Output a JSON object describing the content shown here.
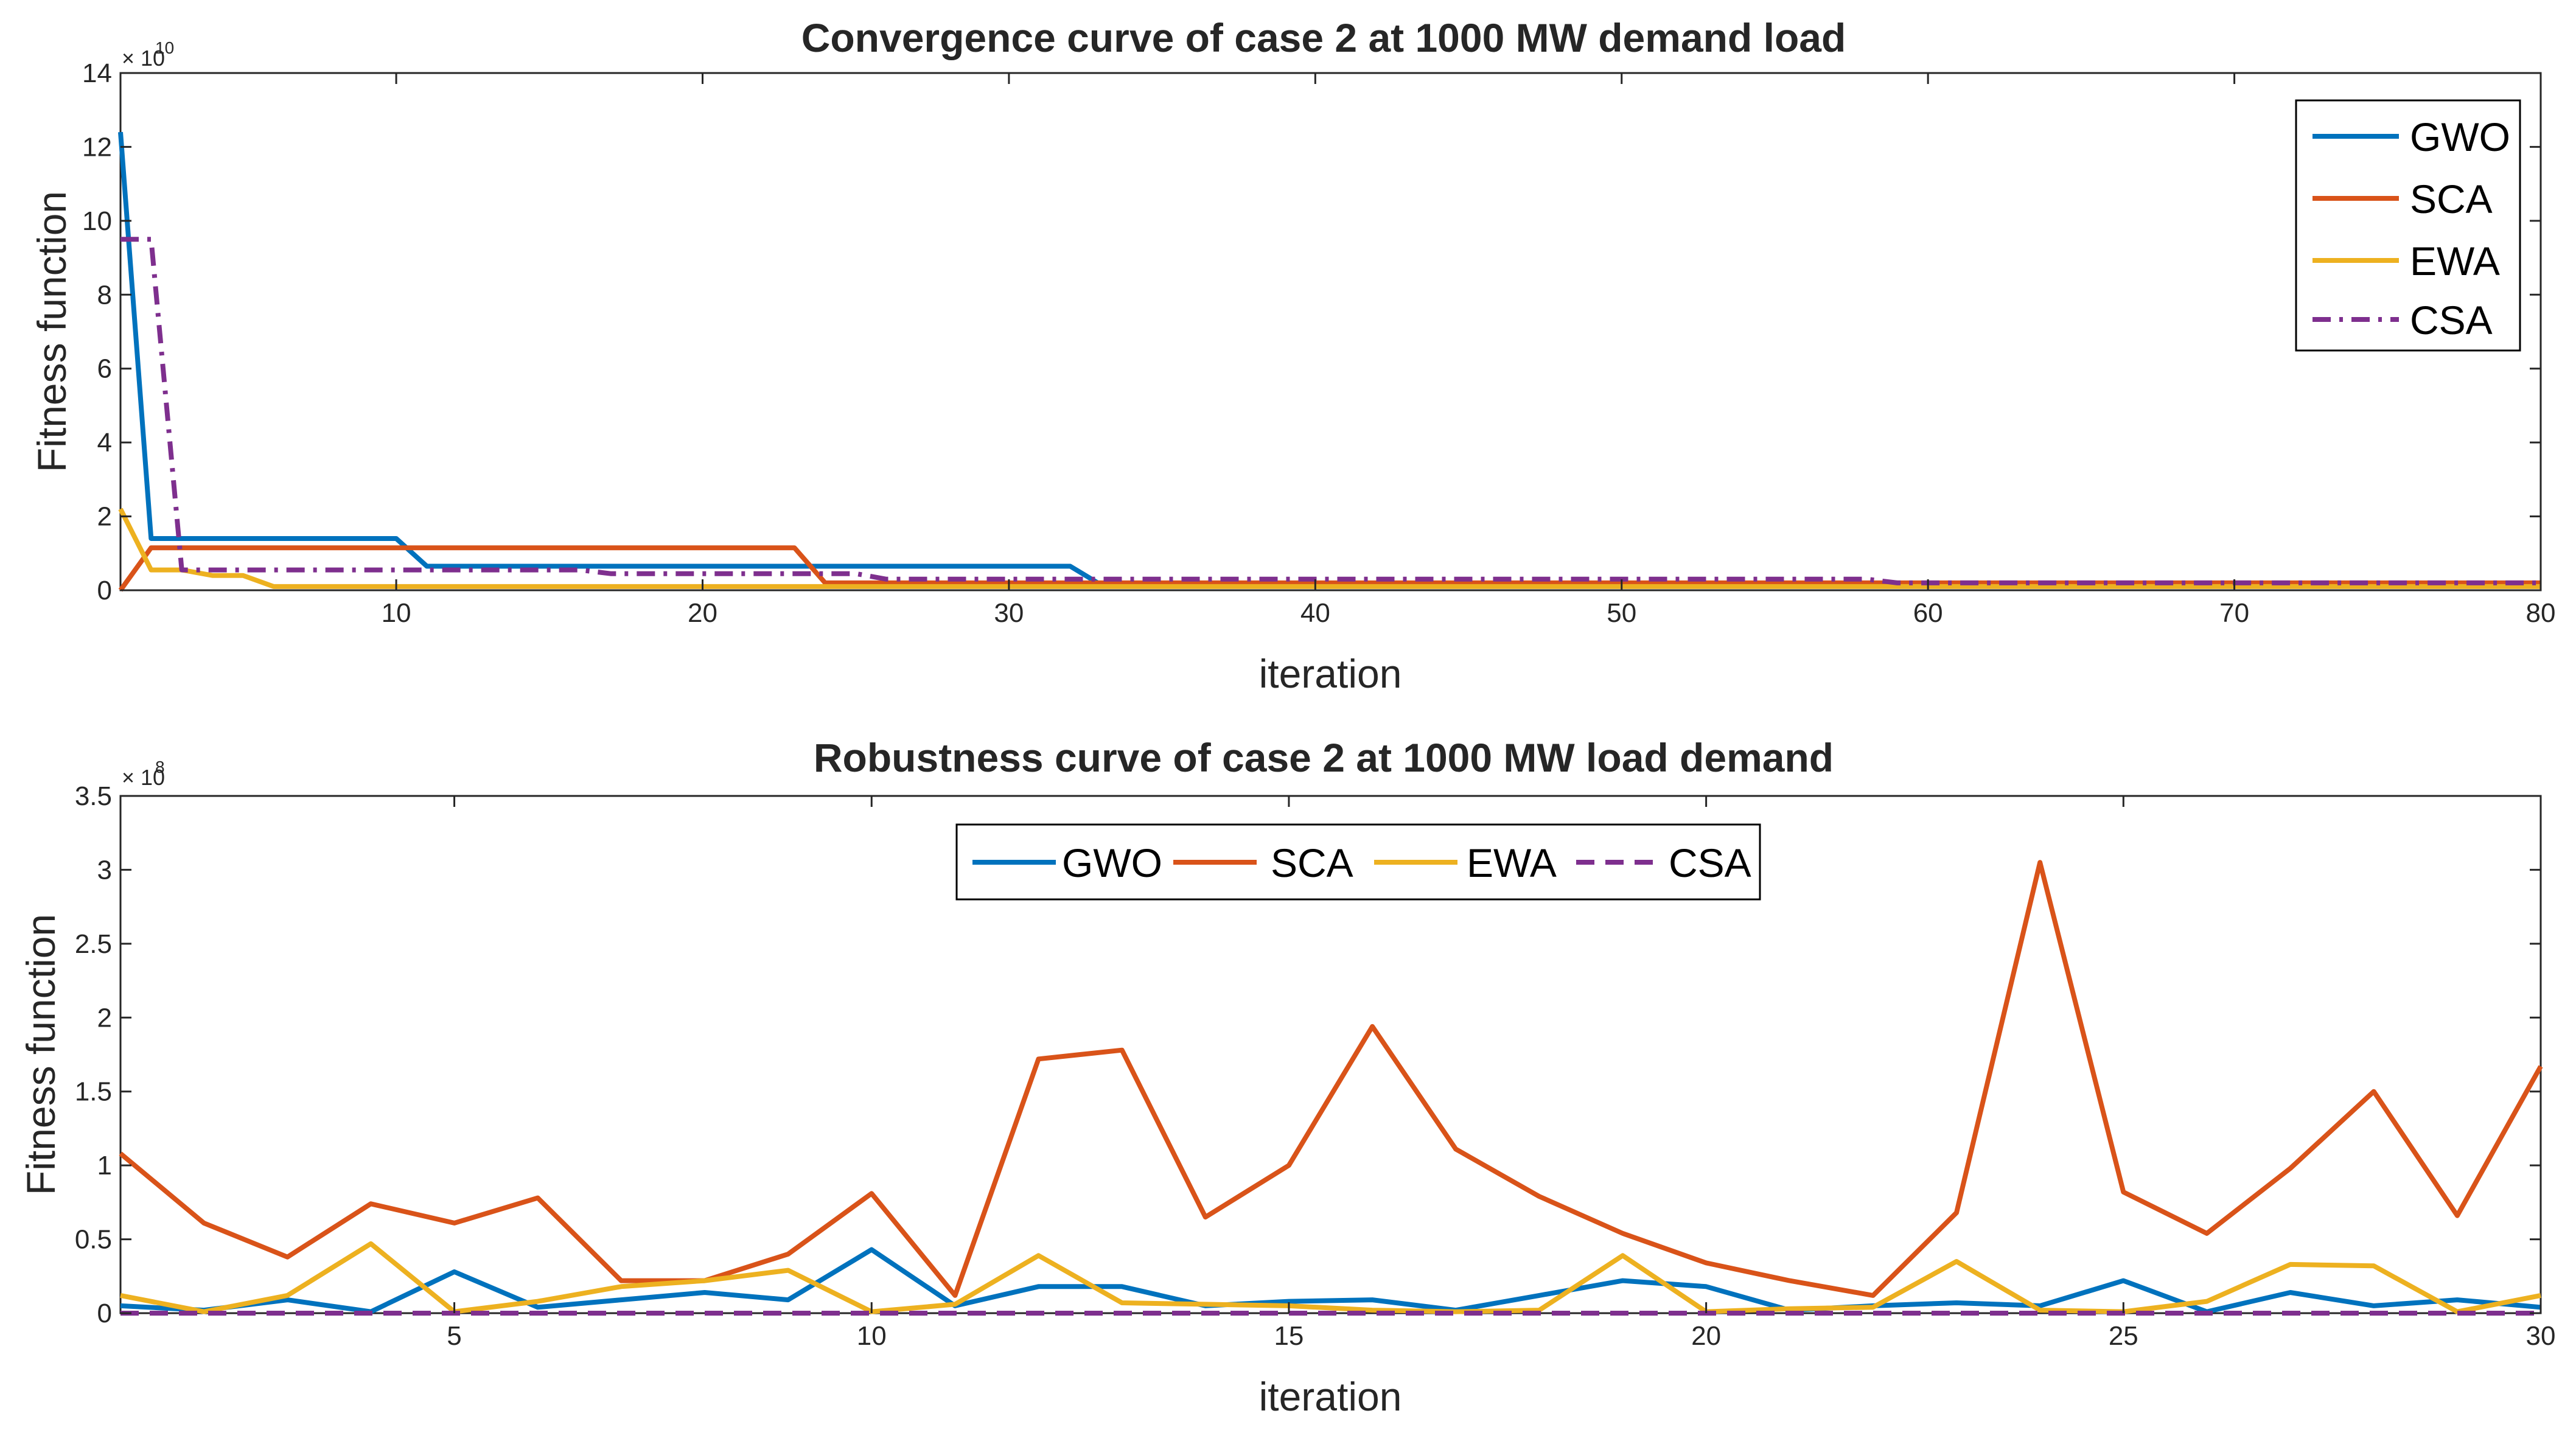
{
  "colors": {
    "GWO": "#0072BD",
    "SCA": "#D95319",
    "EWA": "#EDB120",
    "CSA": "#7E2F8E",
    "axis": "#262626"
  },
  "chart_data": [
    {
      "type": "line",
      "title": "Convergence curve of case 2 at 1000 MW demand load",
      "xlabel": "iteration",
      "ylabel": "Fitness function",
      "xlim": [
        1,
        80
      ],
      "ylim": [
        0,
        14
      ],
      "xticks": [
        10,
        20,
        30,
        40,
        50,
        60,
        70,
        80
      ],
      "xtick_labels": [
        "10",
        "20",
        "30",
        "40",
        "50",
        "60",
        "70",
        "80"
      ],
      "yticks": [
        0,
        2,
        4,
        6,
        8,
        10,
        12,
        14
      ],
      "ytick_labels": [
        "0",
        "2",
        "4",
        "6",
        "8",
        "10",
        "12",
        "14"
      ],
      "y_exponent_base": "× 10",
      "y_exponent_power": "10",
      "legend_position": "top-right",
      "legend_orientation": "vertical",
      "series": [
        {
          "name": "GWO",
          "color": "#0072BD",
          "dash": "solid",
          "points": [
            [
              1,
              12.4
            ],
            [
              2,
              1.4
            ],
            [
              10,
              1.4
            ],
            [
              11,
              0.65
            ],
            [
              32,
              0.65
            ],
            [
              33,
              0.15
            ],
            [
              80,
              0.15
            ]
          ]
        },
        {
          "name": "SCA",
          "color": "#D95319",
          "dash": "solid",
          "points": [
            [
              1,
              0.0
            ],
            [
              2,
              1.15
            ],
            [
              23,
              1.15
            ],
            [
              24,
              0.2
            ],
            [
              80,
              0.2
            ]
          ]
        },
        {
          "name": "EWA",
          "color": "#EDB120",
          "dash": "solid",
          "points": [
            [
              1,
              2.2
            ],
            [
              2,
              0.55
            ],
            [
              3,
              0.55
            ],
            [
              4,
              0.4
            ],
            [
              5,
              0.4
            ],
            [
              6,
              0.1
            ],
            [
              80,
              0.1
            ]
          ]
        },
        {
          "name": "CSA",
          "color": "#7E2F8E",
          "dash": "dashdot",
          "points": [
            [
              1,
              9.5
            ],
            [
              2,
              9.5
            ],
            [
              3,
              0.55
            ],
            [
              16,
              0.55
            ],
            [
              17,
              0.45
            ],
            [
              25,
              0.45
            ],
            [
              26,
              0.3
            ],
            [
              58,
              0.3
            ],
            [
              59,
              0.2
            ],
            [
              80,
              0.2
            ]
          ]
        }
      ]
    },
    {
      "type": "line",
      "title": "Robustness curve of case 2 at 1000 MW load demand",
      "xlabel": "iteration",
      "ylabel": "Fitness function",
      "xlim": [
        1,
        30
      ],
      "ylim": [
        0,
        3.5
      ],
      "xticks": [
        5,
        10,
        15,
        20,
        25,
        30
      ],
      "xtick_labels": [
        "5",
        "10",
        "15",
        "20",
        "25",
        "30"
      ],
      "yticks": [
        0,
        0.5,
        1,
        1.5,
        2,
        2.5,
        3,
        3.5
      ],
      "ytick_labels": [
        "0",
        "0.5",
        "1",
        "1.5",
        "2",
        "2.5",
        "3",
        "3.5"
      ],
      "y_exponent_base": "× 10",
      "y_exponent_power": "8",
      "legend_position": "top-center",
      "legend_orientation": "horizontal",
      "series": [
        {
          "name": "GWO",
          "color": "#0072BD",
          "dash": "solid",
          "x": [
            1,
            2,
            3,
            4,
            5,
            6,
            7,
            8,
            9,
            10,
            11,
            12,
            13,
            14,
            15,
            16,
            17,
            18,
            19,
            20,
            21,
            22,
            23,
            24,
            25,
            26,
            27,
            28,
            29,
            30
          ],
          "values": [
            0.05,
            0.02,
            0.09,
            0.01,
            0.28,
            0.04,
            0.09,
            0.14,
            0.09,
            0.43,
            0.05,
            0.18,
            0.18,
            0.05,
            0.08,
            0.09,
            0.02,
            0.12,
            0.22,
            0.18,
            0.02,
            0.05,
            0.07,
            0.05,
            0.22,
            0.01,
            0.14,
            0.05,
            0.09,
            0.04
          ]
        },
        {
          "name": "SCA",
          "color": "#D95319",
          "dash": "solid",
          "x": [
            1,
            2,
            3,
            4,
            5,
            6,
            7,
            8,
            9,
            10,
            11,
            12,
            13,
            14,
            15,
            16,
            17,
            18,
            19,
            20,
            21,
            22,
            23,
            24,
            25,
            26,
            27,
            28,
            29,
            30
          ],
          "values": [
            1.08,
            0.61,
            0.38,
            0.74,
            0.61,
            0.78,
            0.22,
            0.22,
            0.4,
            0.81,
            0.12,
            1.72,
            1.78,
            0.65,
            1.0,
            1.94,
            1.11,
            0.79,
            0.54,
            0.34,
            0.22,
            0.12,
            0.68,
            3.05,
            0.82,
            0.54,
            0.98,
            1.5,
            0.66,
            1.67
          ]
        },
        {
          "name": "EWA",
          "color": "#EDB120",
          "dash": "solid",
          "x": [
            1,
            2,
            3,
            4,
            5,
            6,
            7,
            8,
            9,
            10,
            11,
            12,
            13,
            14,
            15,
            16,
            17,
            18,
            19,
            20,
            21,
            22,
            23,
            24,
            25,
            26,
            27,
            28,
            29,
            30
          ],
          "values": [
            0.12,
            0.01,
            0.12,
            0.47,
            0.01,
            0.08,
            0.18,
            0.22,
            0.29,
            0.01,
            0.06,
            0.39,
            0.07,
            0.06,
            0.05,
            0.02,
            0.01,
            0.02,
            0.39,
            0.01,
            0.03,
            0.04,
            0.35,
            0.02,
            0.01,
            0.08,
            0.33,
            0.32,
            0.01,
            0.12
          ]
        },
        {
          "name": "CSA",
          "color": "#7E2F8E",
          "dash": "dashed",
          "x": [
            1,
            2,
            3,
            4,
            5,
            6,
            7,
            8,
            9,
            10,
            11,
            12,
            13,
            14,
            15,
            16,
            17,
            18,
            19,
            20,
            21,
            22,
            23,
            24,
            25,
            26,
            27,
            28,
            29,
            30
          ],
          "values": [
            0,
            0,
            0,
            0,
            0,
            0,
            0,
            0,
            0,
            0,
            0,
            0,
            0,
            0,
            0,
            0,
            0,
            0,
            0,
            0,
            0,
            0,
            0,
            0,
            0,
            0,
            0,
            0,
            0,
            0
          ]
        }
      ]
    }
  ]
}
